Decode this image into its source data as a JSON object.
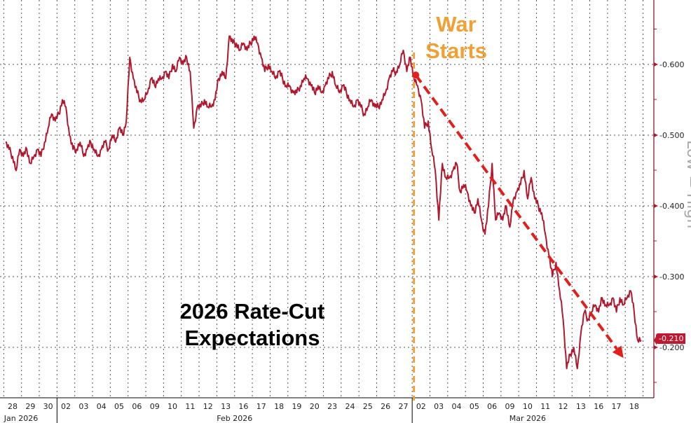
{
  "chart_data": {
    "type": "line",
    "title": "2026 Rate-Cut Expectations",
    "xlabel": "",
    "ylabel": "",
    "side_label": "Low = High",
    "ylim": [
      -0.145,
      -0.69
    ],
    "y_ticks": [
      -0.6,
      -0.5,
      -0.4,
      -0.3,
      -0.2
    ],
    "y_tick_labels": [
      "-0.600",
      "-0.500",
      "-0.400",
      "-0.300",
      "-0.200"
    ],
    "grid": true,
    "line_color": "#b0182e",
    "x_tick_labels": [
      "28",
      "29",
      "30",
      "02",
      "03",
      "04",
      "05",
      "06",
      "09",
      "10",
      "11",
      "12",
      "13",
      "16",
      "17",
      "18",
      "19",
      "20",
      "23",
      "24",
      "25",
      "26",
      "27",
      "02",
      "03",
      "04",
      "05",
      "06",
      "09",
      "10",
      "11",
      "12",
      "13",
      "16",
      "17",
      "18"
    ],
    "months": [
      {
        "label": "Jan 2026",
        "start": 0,
        "end": 2
      },
      {
        "label": "Feb 2026",
        "start": 3,
        "end": 22
      },
      {
        "label": "Mar 2026",
        "start": 23,
        "end": 35
      }
    ],
    "series": [
      {
        "values_by_day": [
          [
            -0.49,
            -0.48,
            -0.47,
            -0.45,
            -0.48
          ],
          [
            -0.47,
            -0.48,
            -0.46,
            -0.47,
            -0.48
          ],
          [
            -0.47,
            -0.49,
            -0.51,
            -0.53,
            -0.52
          ],
          [
            -0.53,
            -0.55,
            -0.54,
            -0.5,
            -0.48
          ],
          [
            -0.48,
            -0.49,
            -0.47,
            -0.48,
            -0.49
          ],
          [
            -0.48,
            -0.47,
            -0.48,
            -0.49,
            -0.48
          ],
          [
            -0.5,
            -0.49,
            -0.51,
            -0.5,
            -0.52
          ],
          [
            -0.61,
            -0.58,
            -0.56,
            -0.55,
            -0.55
          ],
          [
            -0.56,
            -0.58,
            -0.57,
            -0.58,
            -0.58
          ],
          [
            -0.59,
            -0.58,
            -0.6,
            -0.59,
            -0.61
          ],
          [
            -0.6,
            -0.61,
            -0.59,
            -0.51,
            -0.54
          ],
          [
            -0.54,
            -0.55,
            -0.54,
            -0.54,
            -0.55
          ],
          [
            -0.58,
            -0.59,
            -0.58,
            -0.64,
            -0.63
          ],
          [
            -0.63,
            -0.62,
            -0.63,
            -0.62,
            -0.63
          ],
          [
            -0.64,
            -0.63,
            -0.61,
            -0.59,
            -0.6
          ],
          [
            -0.59,
            -0.58,
            -0.59,
            -0.58,
            -0.57
          ],
          [
            -0.57,
            -0.56,
            -0.56,
            -0.57,
            -0.58
          ],
          [
            -0.58,
            -0.57,
            -0.56,
            -0.57,
            -0.56
          ],
          [
            -0.57,
            -0.58,
            -0.59,
            -0.57,
            -0.56
          ],
          [
            -0.57,
            -0.56,
            -0.55,
            -0.54,
            -0.55
          ],
          [
            -0.54,
            -0.53,
            -0.54,
            -0.55,
            -0.54
          ],
          [
            -0.54,
            -0.55,
            -0.56,
            -0.58,
            -0.59
          ],
          [
            -0.59,
            -0.6,
            -0.62,
            -0.59,
            -0.61
          ],
          [
            -0.58,
            -0.57,
            -0.55,
            -0.51,
            -0.52
          ],
          [
            -0.48,
            -0.45,
            -0.38,
            -0.46,
            -0.44
          ],
          [
            -0.44,
            -0.45,
            -0.46,
            -0.42,
            -0.43
          ],
          [
            -0.42,
            -0.4,
            -0.39,
            -0.41,
            -0.38
          ],
          [
            -0.36,
            -0.4,
            -0.46,
            -0.38,
            -0.39
          ],
          [
            -0.38,
            -0.4,
            -0.37,
            -0.41,
            -0.42
          ],
          [
            -0.43,
            -0.45,
            -0.41,
            -0.44,
            -0.41
          ],
          [
            -0.4,
            -0.39,
            -0.36,
            -0.33,
            -0.3
          ],
          [
            -0.32,
            -0.28,
            -0.24,
            -0.17,
            -0.19
          ],
          [
            -0.2,
            -0.17,
            -0.22,
            -0.25,
            -0.24
          ],
          [
            -0.25,
            -0.26,
            -0.25,
            -0.27,
            -0.26
          ],
          [
            -0.26,
            -0.27,
            -0.25,
            -0.27,
            -0.26
          ],
          [
            -0.27,
            -0.28,
            -0.25,
            -0.21,
            -0.21
          ]
        ]
      }
    ],
    "last_value_label": "-0.210",
    "annotations": {
      "event_label": "War Starts",
      "event_index": 22.6,
      "event_color": "#f0a135",
      "trend_arrow_color": "#e0201e",
      "trend_start": {
        "day_index": 22.7,
        "value": -0.585
      },
      "trend_end": {
        "day_index": 34.4,
        "value": -0.185
      }
    }
  }
}
